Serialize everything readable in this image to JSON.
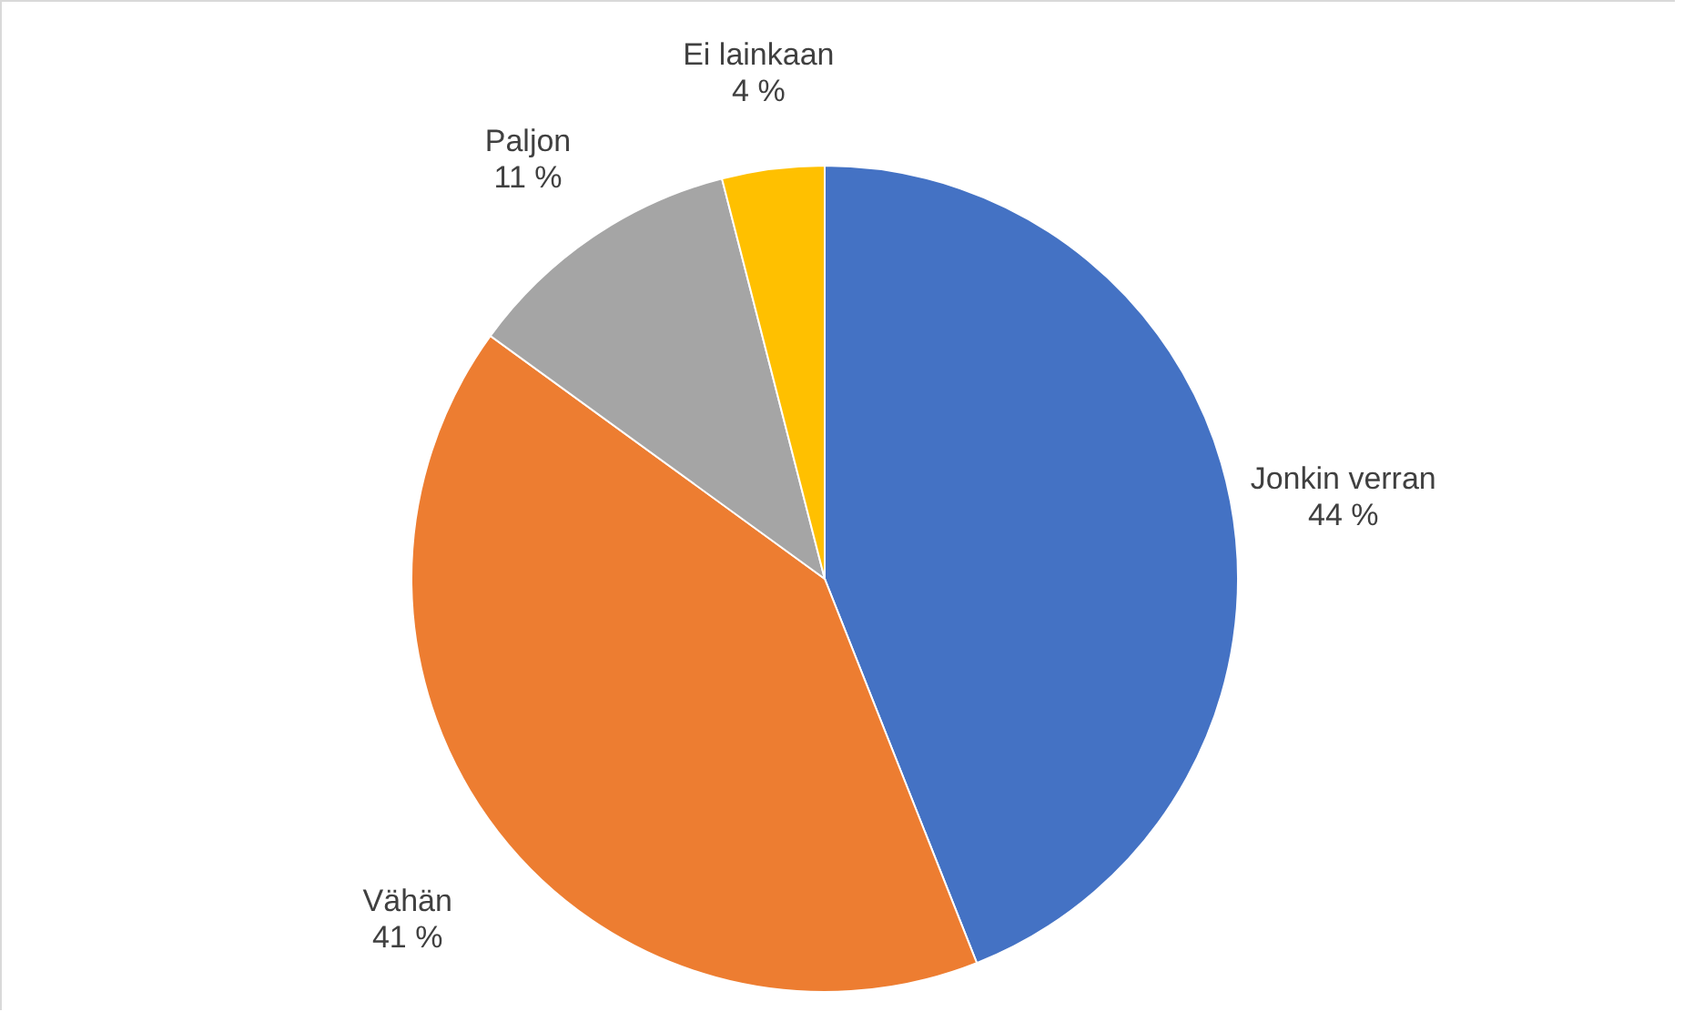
{
  "chart_data": {
    "type": "pie",
    "categories": [
      "Jonkin verran",
      "Vähän",
      "Paljon",
      "Ei lainkaan"
    ],
    "values": [
      44,
      41,
      11,
      4
    ],
    "colors": [
      "#4472c4",
      "#ed7d31",
      "#a5a5a5",
      "#ffc000"
    ],
    "value_labels": [
      "44 %",
      "41 %",
      "11 %",
      "4 %"
    ]
  }
}
